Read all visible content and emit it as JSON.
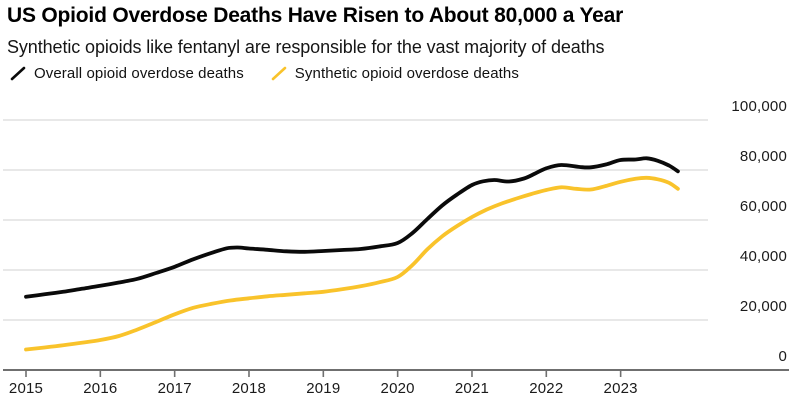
{
  "header": {
    "title": "US Opioid Overdose Deaths Have Risen to About 80,000 a Year",
    "subtitle": "Synthetic opioids like fentanyl are responsible for the vast majority of deaths"
  },
  "colors": {
    "overall_line": "#0a0a0a",
    "synthetic_line": "#f9c32b",
    "gridline": "#d9d9d9",
    "axis": "#6f6f6f",
    "text": "#1a1a1a"
  },
  "chart_data": {
    "type": "line",
    "title": "US Opioid Overdose Deaths Have Risen to About 80,000 a Year",
    "subtitle": "Synthetic opioids like fentanyl are responsible for the vast majority of deaths",
    "legend_position": "top-left",
    "grid": "horizontal",
    "x_ticks": [
      {
        "value": 2015,
        "label": "2015"
      },
      {
        "value": 2016,
        "label": "2016"
      },
      {
        "value": 2017,
        "label": "2017"
      },
      {
        "value": 2018,
        "label": "2018"
      },
      {
        "value": 2019,
        "label": "2019"
      },
      {
        "value": 2020,
        "label": "2020"
      },
      {
        "value": 2021,
        "label": "2021"
      },
      {
        "value": 2022,
        "label": "2022"
      },
      {
        "value": 2023,
        "label": "2023"
      }
    ],
    "y_ticks": [
      {
        "value": 0,
        "label": "0"
      },
      {
        "value": 20000,
        "label": "20,000"
      },
      {
        "value": 40000,
        "label": "40,000"
      },
      {
        "value": 60000,
        "label": "60,000"
      },
      {
        "value": 80000,
        "label": "80,000"
      },
      {
        "value": 100000,
        "label": "100,000"
      }
    ],
    "ylim": [
      0,
      100000
    ],
    "xlim_years": [
      2015.0,
      2023.77
    ],
    "series": [
      {
        "name": "Overall opioid overdose deaths",
        "color": "#0a0a0a",
        "points": [
          [
            2015.0,
            29300
          ],
          [
            2015.25,
            30300
          ],
          [
            2015.5,
            31300
          ],
          [
            2015.75,
            32500
          ],
          [
            2016.0,
            33700
          ],
          [
            2016.25,
            35000
          ],
          [
            2016.5,
            36500
          ],
          [
            2016.75,
            38800
          ],
          [
            2017.0,
            41300
          ],
          [
            2017.25,
            44300
          ],
          [
            2017.5,
            46900
          ],
          [
            2017.7,
            48700
          ],
          [
            2017.85,
            49000
          ],
          [
            2018.0,
            48600
          ],
          [
            2018.25,
            48100
          ],
          [
            2018.5,
            47500
          ],
          [
            2018.75,
            47300
          ],
          [
            2019.0,
            47600
          ],
          [
            2019.25,
            48000
          ],
          [
            2019.5,
            48400
          ],
          [
            2019.75,
            49400
          ],
          [
            2020.0,
            50800
          ],
          [
            2020.2,
            54800
          ],
          [
            2020.4,
            60400
          ],
          [
            2020.6,
            65800
          ],
          [
            2020.8,
            70200
          ],
          [
            2021.0,
            74000
          ],
          [
            2021.15,
            75500
          ],
          [
            2021.3,
            76000
          ],
          [
            2021.5,
            75400
          ],
          [
            2021.7,
            76600
          ],
          [
            2021.85,
            78600
          ],
          [
            2022.0,
            80700
          ],
          [
            2022.2,
            82000
          ],
          [
            2022.45,
            81200
          ],
          [
            2022.6,
            81100
          ],
          [
            2022.8,
            82200
          ],
          [
            2023.0,
            84000
          ],
          [
            2023.2,
            84200
          ],
          [
            2023.35,
            84700
          ],
          [
            2023.5,
            83700
          ],
          [
            2023.65,
            81800
          ],
          [
            2023.77,
            79500
          ]
        ]
      },
      {
        "name": "Synthetic opioid overdose deaths",
        "color": "#f9c32b",
        "points": [
          [
            2015.0,
            8200
          ],
          [
            2015.25,
            9000
          ],
          [
            2015.5,
            9900
          ],
          [
            2015.75,
            10900
          ],
          [
            2016.0,
            12000
          ],
          [
            2016.25,
            13600
          ],
          [
            2016.5,
            16200
          ],
          [
            2016.75,
            19200
          ],
          [
            2017.0,
            22300
          ],
          [
            2017.25,
            24900
          ],
          [
            2017.5,
            26500
          ],
          [
            2017.75,
            27800
          ],
          [
            2018.0,
            28700
          ],
          [
            2018.25,
            29500
          ],
          [
            2018.5,
            30100
          ],
          [
            2018.75,
            30700
          ],
          [
            2019.0,
            31300
          ],
          [
            2019.25,
            32300
          ],
          [
            2019.5,
            33500
          ],
          [
            2019.75,
            35100
          ],
          [
            2020.0,
            37200
          ],
          [
            2020.2,
            42000
          ],
          [
            2020.4,
            48300
          ],
          [
            2020.6,
            53500
          ],
          [
            2020.8,
            57600
          ],
          [
            2021.0,
            61200
          ],
          [
            2021.2,
            64200
          ],
          [
            2021.4,
            66600
          ],
          [
            2021.6,
            68600
          ],
          [
            2021.8,
            70400
          ],
          [
            2022.0,
            72000
          ],
          [
            2022.2,
            73100
          ],
          [
            2022.4,
            72500
          ],
          [
            2022.6,
            72200
          ],
          [
            2022.8,
            73600
          ],
          [
            2023.0,
            75300
          ],
          [
            2023.2,
            76500
          ],
          [
            2023.35,
            76900
          ],
          [
            2023.5,
            76300
          ],
          [
            2023.65,
            74900
          ],
          [
            2023.77,
            72500
          ]
        ]
      }
    ]
  }
}
